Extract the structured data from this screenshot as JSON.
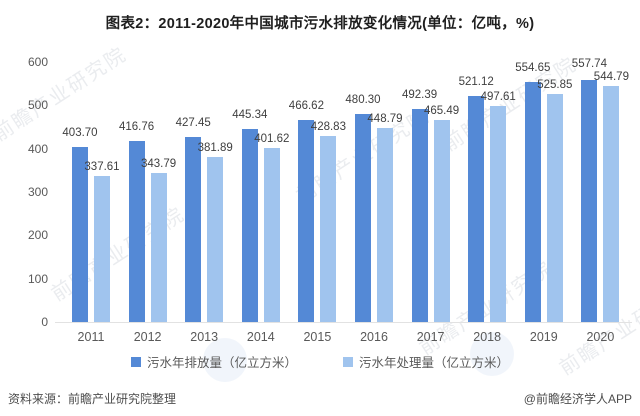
{
  "title": "图表2：2011-2020年中国城市污水排放变化情况(单位：亿吨，%)",
  "chart_data": {
    "type": "bar",
    "categories": [
      "2011",
      "2012",
      "2013",
      "2014",
      "2015",
      "2016",
      "2017",
      "2018",
      "2019",
      "2020"
    ],
    "series": [
      {
        "key": "discharge",
        "name": "污水年排放量（亿立方米）",
        "color": "#5489d6",
        "values": [
          403.7,
          416.76,
          427.45,
          445.34,
          466.62,
          480.3,
          492.39,
          521.12,
          554.65,
          557.74
        ]
      },
      {
        "key": "treatment",
        "name": "污水年处理量（亿立方米）",
        "color": "#a0c4ee",
        "values": [
          337.61,
          343.79,
          381.89,
          401.62,
          428.83,
          448.79,
          465.49,
          497.61,
          525.85,
          544.79
        ]
      }
    ],
    "ylim": [
      0,
      600
    ],
    "yticks": [
      0,
      100,
      200,
      300,
      400,
      500,
      600
    ],
    "grid": false,
    "legend_position": "bottom",
    "value_labels": true
  },
  "footer": {
    "source": "资料来源：前瞻产业研究院整理",
    "credit": "@前瞻经济学人APP"
  },
  "watermark": {
    "text": "前瞻产业研究院"
  }
}
